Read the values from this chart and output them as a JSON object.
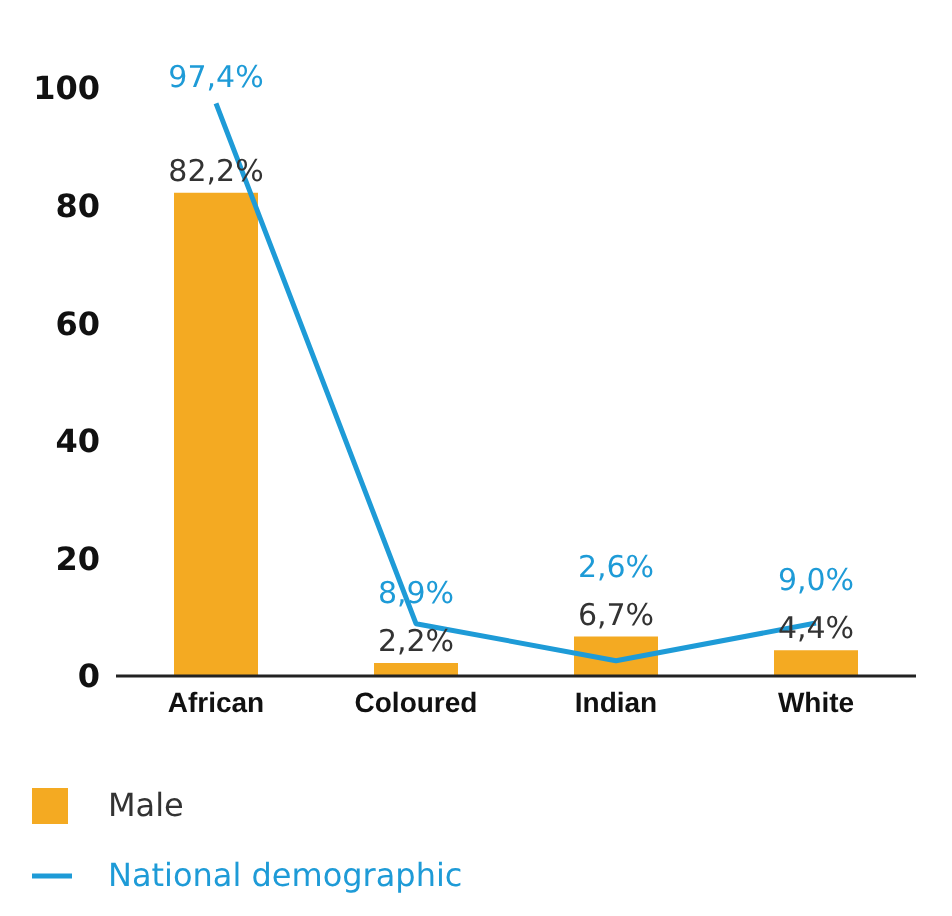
{
  "chart_data": {
    "type": "bar",
    "categories": [
      "African",
      "Coloured",
      "Indian",
      "White"
    ],
    "series": [
      {
        "name": "Male",
        "color": "#f4aa22",
        "values": [
          82.2,
          2.2,
          6.7,
          4.4
        ],
        "value_labels": [
          "82,2%",
          "2,2%",
          "6,7%",
          "4,4%"
        ]
      },
      {
        "name": "National demographic",
        "type": "line",
        "color": "#1e9bd7",
        "values": [
          97.4,
          8.9,
          2.6,
          9.0
        ],
        "value_labels": [
          "97,4%",
          "8,9%",
          "2,6%",
          "9,0%"
        ]
      }
    ],
    "ylim": [
      0,
      100
    ],
    "yticks": [
      0,
      20,
      40,
      60,
      80,
      100
    ],
    "grid": false,
    "legend": "bottom left",
    "marker": "none",
    "line_style": "solid"
  }
}
